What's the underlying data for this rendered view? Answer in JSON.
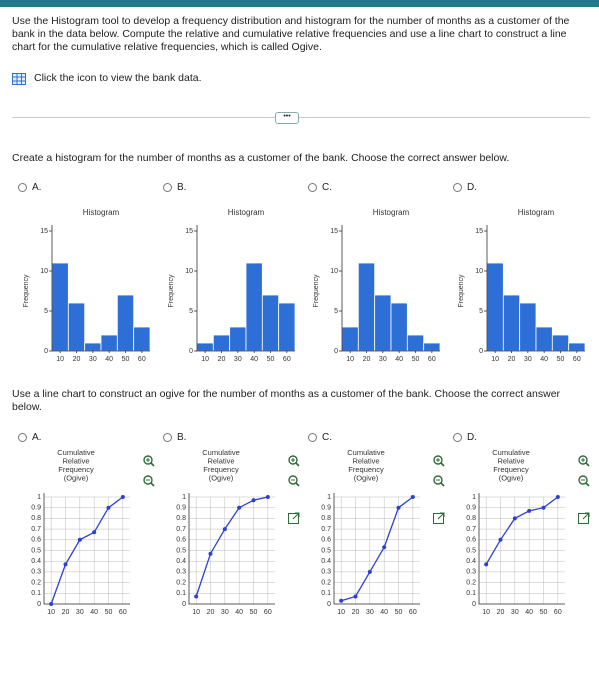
{
  "header": {
    "instructions": "Use the Histogram tool to develop a frequency distribution and histogram for the number of months as a customer of the bank in the data below. Compute the relative and cumulative relative frequencies and use a line chart to construct a line chart for the cumulative relative frequencies, which is called Ogive.",
    "link_text": "Click the icon to view the bank data."
  },
  "question1": {
    "prompt": "Create a histogram for the number of months as a customer of the bank. Choose the correct answer below.",
    "options": [
      "A.",
      "B.",
      "C.",
      "D."
    ]
  },
  "question2": {
    "prompt": "Use a line chart to construct an ogive for the number of months as a customer of the bank. Choose the correct answer below.",
    "options": [
      "A.",
      "B.",
      "C.",
      "D."
    ]
  },
  "chart_data": [
    {
      "type": "histogram",
      "title": "Histogram",
      "y_label": "Frequency",
      "color": "#2d6fd6",
      "bins": [
        5,
        15,
        25,
        35,
        45,
        55,
        65
      ],
      "values": [
        11,
        6,
        1,
        2,
        7,
        3
      ],
      "xlim": [
        5,
        65
      ],
      "xticks": [
        10,
        20,
        30,
        40,
        50,
        60
      ],
      "ylim": [
        0,
        15
      ],
      "yticks": [
        0,
        5,
        10,
        15
      ]
    },
    {
      "type": "histogram",
      "title": "Histogram",
      "y_label": "Frequency",
      "color": "#2d6fd6",
      "bins": [
        5,
        15,
        25,
        35,
        45,
        55,
        65
      ],
      "values": [
        1,
        2,
        3,
        11,
        7,
        6
      ],
      "xlim": [
        5,
        65
      ],
      "xticks": [
        10,
        20,
        30,
        40,
        50,
        60
      ],
      "ylim": [
        0,
        15
      ],
      "yticks": [
        0,
        5,
        10,
        15
      ]
    },
    {
      "type": "histogram",
      "title": "Histogram",
      "y_label": "Frequency",
      "color": "#2d6fd6",
      "bins": [
        5,
        15,
        25,
        35,
        45,
        55,
        65
      ],
      "values": [
        3,
        11,
        7,
        6,
        2,
        1
      ],
      "xlim": [
        5,
        65
      ],
      "xticks": [
        10,
        20,
        30,
        40,
        50,
        60
      ],
      "ylim": [
        0,
        15
      ],
      "yticks": [
        0,
        5,
        10,
        15
      ]
    },
    {
      "type": "histogram",
      "title": "Histogram",
      "y_label": "Frequency",
      "color": "#2d6fd6",
      "bins": [
        5,
        15,
        25,
        35,
        45,
        55,
        65
      ],
      "values": [
        11,
        7,
        6,
        3,
        2,
        1
      ],
      "xlim": [
        5,
        65
      ],
      "xticks": [
        10,
        20,
        30,
        40,
        50,
        60
      ],
      "ylim": [
        0,
        15
      ],
      "yticks": [
        0,
        5,
        10,
        15
      ]
    },
    {
      "type": "line",
      "title_lines": [
        "Cumulative",
        "Relative",
        "Frequency",
        "(Ogive)"
      ],
      "color": "#2d3fd6",
      "x": [
        10,
        20,
        30,
        40,
        50,
        60
      ],
      "values": [
        0,
        0.37,
        0.6,
        0.67,
        0.9,
        1
      ],
      "xlim": [
        5,
        65
      ],
      "xticks": [
        10,
        20,
        30,
        40,
        50,
        60
      ],
      "ylim": [
        0,
        1
      ],
      "yticks": [
        0,
        0.1,
        0.2,
        0.3,
        0.4,
        0.5,
        0.6,
        0.7,
        0.8,
        0.9,
        1
      ],
      "grid": true
    },
    {
      "type": "line",
      "title_lines": [
        "Cumulative",
        "Relative",
        "Frequency",
        "(Ogive)"
      ],
      "color": "#2d3fd6",
      "x": [
        10,
        20,
        30,
        40,
        50,
        60
      ],
      "values": [
        0.07,
        0.47,
        0.7,
        0.9,
        0.97,
        1
      ],
      "xlim": [
        5,
        65
      ],
      "xticks": [
        10,
        20,
        30,
        40,
        50,
        60
      ],
      "ylim": [
        0,
        1
      ],
      "yticks": [
        0,
        0.1,
        0.2,
        0.3,
        0.4,
        0.5,
        0.6,
        0.7,
        0.8,
        0.9,
        1
      ],
      "grid": true
    },
    {
      "type": "line",
      "title_lines": [
        "Cumulative",
        "Relative",
        "Frequency",
        "(Ogive)"
      ],
      "color": "#2d3fd6",
      "x": [
        10,
        20,
        30,
        40,
        50,
        60
      ],
      "values": [
        0.03,
        0.07,
        0.3,
        0.53,
        0.9,
        1
      ],
      "xlim": [
        5,
        65
      ],
      "xticks": [
        10,
        20,
        30,
        40,
        50,
        60
      ],
      "ylim": [
        0,
        1
      ],
      "yticks": [
        0,
        0.1,
        0.2,
        0.3,
        0.4,
        0.5,
        0.6,
        0.7,
        0.8,
        0.9,
        1
      ],
      "grid": true
    },
    {
      "type": "line",
      "title_lines": [
        "Cumulative",
        "Relative",
        "Frequency",
        "(Ogive)"
      ],
      "color": "#2d3fd6",
      "x": [
        10,
        20,
        30,
        40,
        50,
        60
      ],
      "values": [
        0.37,
        0.6,
        0.8,
        0.87,
        0.9,
        1
      ],
      "xlim": [
        5,
        65
      ],
      "xticks": [
        10,
        20,
        30,
        40,
        50,
        60
      ],
      "ylim": [
        0,
        1
      ],
      "yticks": [
        0,
        0.1,
        0.2,
        0.3,
        0.4,
        0.5,
        0.6,
        0.7,
        0.8,
        0.9,
        1
      ],
      "grid": true
    }
  ]
}
